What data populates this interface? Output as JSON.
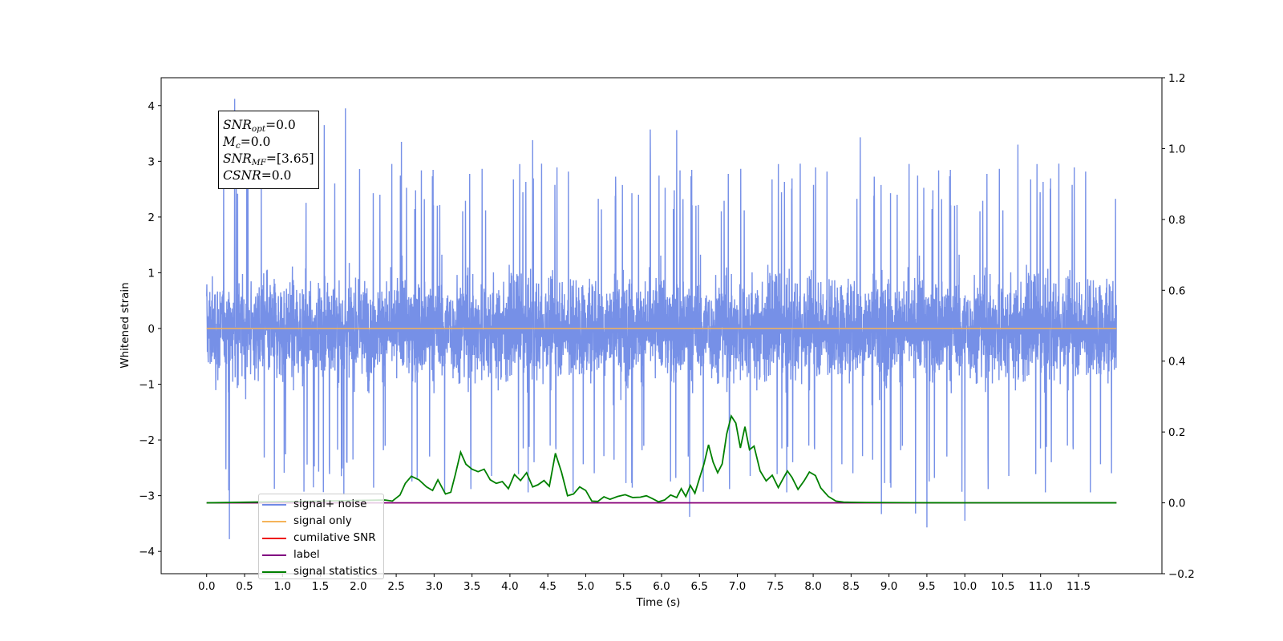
{
  "chart_data": {
    "type": "line",
    "xlabel": "Time (s)",
    "ylabel": "Whitened strain",
    "xlim": [
      -0.6,
      12.6
    ],
    "ylim": [
      -4.4,
      4.5
    ],
    "y2lim": [
      -0.2,
      1.2
    ],
    "xticks": [
      0.0,
      0.5,
      1.0,
      1.5,
      2.0,
      2.5,
      3.0,
      3.5,
      4.0,
      4.5,
      5.0,
      5.5,
      6.0,
      6.5,
      7.0,
      7.5,
      8.0,
      8.5,
      9.0,
      9.5,
      10.0,
      10.5,
      11.0,
      11.5
    ],
    "xtick_labels": [
      "0.0",
      "0.5",
      "1.0",
      "1.5",
      "2.0",
      "2.5",
      "3.0",
      "3.5",
      "4.0",
      "4.5",
      "5.0",
      "5.5",
      "6.0",
      "6.5",
      "7.0",
      "7.5",
      "8.0",
      "8.5",
      "9.0",
      "9.5",
      "10.0",
      "10.5",
      "11.0",
      "11.5"
    ],
    "yticks": [
      -4,
      -3,
      -2,
      -1,
      0,
      1,
      2,
      3,
      4
    ],
    "ytick_labels": [
      "−4",
      "−3",
      "−2",
      "−1",
      "0",
      "1",
      "2",
      "3",
      "4"
    ],
    "y2ticks": [
      -0.2,
      0.0,
      0.2,
      0.4,
      0.6,
      0.8,
      1.0,
      1.2
    ],
    "y2tick_labels": [
      "−0.2",
      "0.0",
      "0.2",
      "0.4",
      "0.6",
      "0.8",
      "1.0",
      "1.2"
    ],
    "grid": false,
    "legend_position": "lower-left",
    "series": [
      {
        "name": "signal+ noise",
        "axis": "left",
        "color": "#6f8ae6",
        "x_range": [
          0.0,
          12.0
        ],
        "typical_range": [
          -1.8,
          1.8
        ],
        "peaks": [
          {
            "x": 0.37,
            "y": 4.12
          },
          {
            "x": 1.83,
            "y": 3.95
          },
          {
            "x": 1.55,
            "y": 3.65
          },
          {
            "x": 5.85,
            "y": 3.57
          },
          {
            "x": 6.2,
            "y": 3.56
          },
          {
            "x": 0.3,
            "y": -3.78
          },
          {
            "x": 9.5,
            "y": -3.57
          },
          {
            "x": 10.0,
            "y": -3.45
          },
          {
            "x": 6.37,
            "y": -3.38
          },
          {
            "x": 8.9,
            "y": -3.33
          },
          {
            "x": 9.35,
            "y": -3.32
          },
          {
            "x": 0.53,
            "y": 3.4
          },
          {
            "x": 2.57,
            "y": 3.35
          },
          {
            "x": 4.3,
            "y": 3.38
          },
          {
            "x": 8.62,
            "y": 3.43
          },
          {
            "x": 10.7,
            "y": 3.3
          }
        ]
      },
      {
        "name": "signal only",
        "axis": "left",
        "color": "#f5b45a",
        "x": [
          0.0,
          12.0
        ],
        "y": [
          0.0,
          0.0
        ]
      },
      {
        "name": "cumilative SNR",
        "axis": "right",
        "color": "#ee1111",
        "x": [
          0.0,
          12.0
        ],
        "y": [
          0.0,
          0.0
        ]
      },
      {
        "name": "label",
        "axis": "right",
        "color": "#800080",
        "x": [
          0.0,
          12.0
        ],
        "y": [
          0.0,
          0.0
        ]
      },
      {
        "name": "signal statistics",
        "axis": "right",
        "color": "#008000",
        "x": [
          0.0,
          2.35,
          2.45,
          2.55,
          2.62,
          2.7,
          2.8,
          2.9,
          2.98,
          3.05,
          3.15,
          3.22,
          3.28,
          3.35,
          3.42,
          3.5,
          3.58,
          3.66,
          3.74,
          3.82,
          3.9,
          3.98,
          4.06,
          4.14,
          4.22,
          4.3,
          4.37,
          4.45,
          4.52,
          4.6,
          4.68,
          4.76,
          4.84,
          4.92,
          5.0,
          5.08,
          5.16,
          5.24,
          5.32,
          5.42,
          5.52,
          5.62,
          5.72,
          5.8,
          5.88,
          5.96,
          6.04,
          6.12,
          6.2,
          6.26,
          6.32,
          6.38,
          6.44,
          6.5,
          6.56,
          6.62,
          6.68,
          6.74,
          6.8,
          6.86,
          6.92,
          6.98,
          7.04,
          7.1,
          7.16,
          7.22,
          7.3,
          7.38,
          7.46,
          7.54,
          7.6,
          7.66,
          7.72,
          7.8,
          7.88,
          7.95,
          8.03,
          8.1,
          8.2,
          8.3,
          8.4,
          8.5,
          8.7,
          9.0,
          9.3,
          9.6,
          10.0,
          11.0,
          12.0
        ],
        "y": [
          0.0,
          0.008,
          0.005,
          0.022,
          0.055,
          0.075,
          0.065,
          0.045,
          0.035,
          0.065,
          0.025,
          0.03,
          0.08,
          0.143,
          0.109,
          0.095,
          0.088,
          0.095,
          0.065,
          0.055,
          0.06,
          0.04,
          0.08,
          0.063,
          0.085,
          0.045,
          0.051,
          0.063,
          0.047,
          0.14,
          0.087,
          0.02,
          0.025,
          0.045,
          0.035,
          0.005,
          0.004,
          0.017,
          0.01,
          0.018,
          0.023,
          0.015,
          0.016,
          0.02,
          0.012,
          0.003,
          0.008,
          0.022,
          0.015,
          0.04,
          0.018,
          0.049,
          0.027,
          0.069,
          0.11,
          0.164,
          0.115,
          0.085,
          0.11,
          0.195,
          0.245,
          0.225,
          0.155,
          0.215,
          0.15,
          0.16,
          0.09,
          0.062,
          0.078,
          0.043,
          0.067,
          0.09,
          0.072,
          0.038,
          0.062,
          0.087,
          0.077,
          0.042,
          0.018,
          0.005,
          0.002,
          0.0015,
          0.001,
          0.0008,
          0.0005,
          0.0003,
          0.0002,
          0.0001,
          0.0
        ]
      }
    ],
    "annotation": {
      "snr_opt_label": "SNR",
      "snr_opt_sub": "opt",
      "snr_opt_value": "=0.0",
      "mc_label": "M",
      "mc_sub": "c",
      "mc_value": "=0.0",
      "snr_mf_label": "SNR",
      "snr_mf_sub": "MF",
      "snr_mf_value": "=[3.65]",
      "csnr_label": "CSNR",
      "csnr_value": "=0.0"
    },
    "legend": [
      {
        "label": "signal+ noise",
        "color": "#6f8ae6"
      },
      {
        "label": "signal only",
        "color": "#f5b45a"
      },
      {
        "label": "cumilative SNR",
        "color": "#ee1111"
      },
      {
        "label": "label",
        "color": "#800080"
      },
      {
        "label": "signal statistics",
        "color": "#008000"
      }
    ]
  }
}
